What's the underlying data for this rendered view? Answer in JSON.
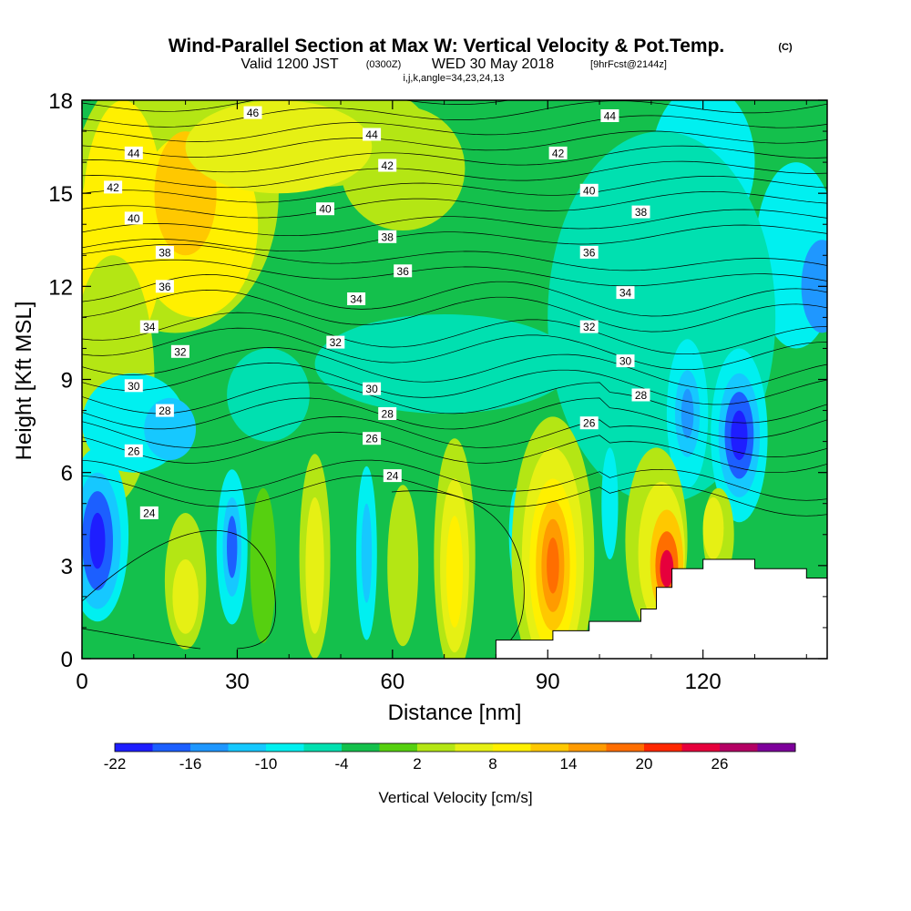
{
  "title": {
    "main": "Wind-Parallel Section at Max W: Vertical Velocity & Pot.Temp.",
    "main_mark": "(C)",
    "sub_a": "Valid 1200 JST",
    "sub_b": "(0300Z)",
    "sub_c": "WED 30 May 2018",
    "sub_d": "[9hrFcst@2144z]",
    "line3": "i,j,k,angle=34,23,24,13"
  },
  "chart_data": {
    "type": "heatmap",
    "xlabel": "Distance [nm]",
    "ylabel": "Height [Kft MSL]",
    "xlim": [
      0,
      144
    ],
    "ylim": [
      0,
      18
    ],
    "x_ticks": [
      0,
      30,
      60,
      90,
      120
    ],
    "y_ticks": [
      0,
      3,
      6,
      9,
      12,
      15,
      18
    ],
    "fill_field": "Vertical Velocity [cm/s]",
    "colorbar": {
      "title": "Vertical Velocity [cm/s]",
      "levels": [
        -22,
        -19,
        -16,
        -13,
        -10,
        -7,
        -4,
        -1,
        2,
        5,
        8,
        11,
        14,
        17,
        20,
        23,
        26,
        29
      ],
      "labels": [
        "-22",
        "-16",
        "-10",
        "-4",
        "2",
        "8",
        "14",
        "20",
        "26"
      ],
      "colors": [
        "#1e1eff",
        "#1c5fff",
        "#1f97ff",
        "#16c8ff",
        "#00f0f0",
        "#00e0b0",
        "#14c04c",
        "#56d010",
        "#b4e614",
        "#e6f014",
        "#fff000",
        "#ffc800",
        "#ff9b00",
        "#ff6e00",
        "#ff2800",
        "#e6003c",
        "#b40064",
        "#7d009b"
      ]
    },
    "vertical_velocity_extrema": [
      {
        "x": 3,
        "y": 3.8,
        "value": -22
      },
      {
        "x": 29,
        "y": 3.6,
        "value": -17
      },
      {
        "x": 127,
        "y": 7.3,
        "value": -22
      },
      {
        "x": 117,
        "y": 7.9,
        "value": -13
      },
      {
        "x": 90,
        "y": 3.0,
        "value": 20
      },
      {
        "x": 113,
        "y": 3.0,
        "value": 29
      },
      {
        "x": 72,
        "y": 2.8,
        "value": 11
      },
      {
        "x": 20,
        "y": 14.0,
        "value": 12
      }
    ],
    "contour_field": "Potential Temperature [C]",
    "contour_levels": [
      24,
      26,
      28,
      30,
      32,
      34,
      36,
      38,
      40,
      42,
      44,
      46
    ],
    "contour_labels": [
      {
        "text": "46",
        "x": 33,
        "y": 17.6
      },
      {
        "text": "44",
        "x": 10,
        "y": 16.3
      },
      {
        "text": "44",
        "x": 56,
        "y": 16.9
      },
      {
        "text": "44",
        "x": 102,
        "y": 17.5
      },
      {
        "text": "42",
        "x": 6,
        "y": 15.2
      },
      {
        "text": "42",
        "x": 59,
        "y": 15.9
      },
      {
        "text": "42",
        "x": 92,
        "y": 16.3
      },
      {
        "text": "40",
        "x": 10,
        "y": 14.2
      },
      {
        "text": "40",
        "x": 47,
        "y": 14.5
      },
      {
        "text": "40",
        "x": 98,
        "y": 15.1
      },
      {
        "text": "38",
        "x": 16,
        "y": 13.1
      },
      {
        "text": "38",
        "x": 59,
        "y": 13.6
      },
      {
        "text": "38",
        "x": 108,
        "y": 14.4
      },
      {
        "text": "36",
        "x": 16,
        "y": 12.0
      },
      {
        "text": "36",
        "x": 62,
        "y": 12.5
      },
      {
        "text": "36",
        "x": 98,
        "y": 13.1
      },
      {
        "text": "34",
        "x": 13,
        "y": 10.7
      },
      {
        "text": "34",
        "x": 53,
        "y": 11.6
      },
      {
        "text": "34",
        "x": 105,
        "y": 11.8
      },
      {
        "text": "32",
        "x": 19,
        "y": 9.9
      },
      {
        "text": "32",
        "x": 49,
        "y": 10.2
      },
      {
        "text": "32",
        "x": 98,
        "y": 10.7
      },
      {
        "text": "30",
        "x": 10,
        "y": 8.8
      },
      {
        "text": "30",
        "x": 56,
        "y": 8.7
      },
      {
        "text": "30",
        "x": 105,
        "y": 9.6
      },
      {
        "text": "28",
        "x": 16,
        "y": 8.0
      },
      {
        "text": "28",
        "x": 59,
        "y": 7.9
      },
      {
        "text": "28",
        "x": 108,
        "y": 8.5
      },
      {
        "text": "26",
        "x": 10,
        "y": 6.7
      },
      {
        "text": "26",
        "x": 56,
        "y": 7.1
      },
      {
        "text": "26",
        "x": 98,
        "y": 7.6
      },
      {
        "text": "24",
        "x": 13,
        "y": 4.7
      },
      {
        "text": "24",
        "x": 60,
        "y": 5.9
      }
    ],
    "terrain_profile": [
      [
        80,
        0
      ],
      [
        80,
        0.6
      ],
      [
        87,
        0.6
      ],
      [
        87,
        0.6
      ],
      [
        91,
        0.6
      ],
      [
        91,
        0.9
      ],
      [
        98,
        0.9
      ],
      [
        98,
        1.2
      ],
      [
        108,
        1.2
      ],
      [
        108,
        1.6
      ],
      [
        111,
        1.6
      ],
      [
        111,
        2.3
      ],
      [
        114,
        2.3
      ],
      [
        114,
        2.9
      ],
      [
        120,
        2.9
      ],
      [
        120,
        3.2
      ],
      [
        130,
        3.2
      ],
      [
        130,
        2.9
      ],
      [
        140,
        2.9
      ],
      [
        140,
        2.6
      ],
      [
        144,
        2.6
      ],
      [
        144,
        0
      ]
    ]
  }
}
